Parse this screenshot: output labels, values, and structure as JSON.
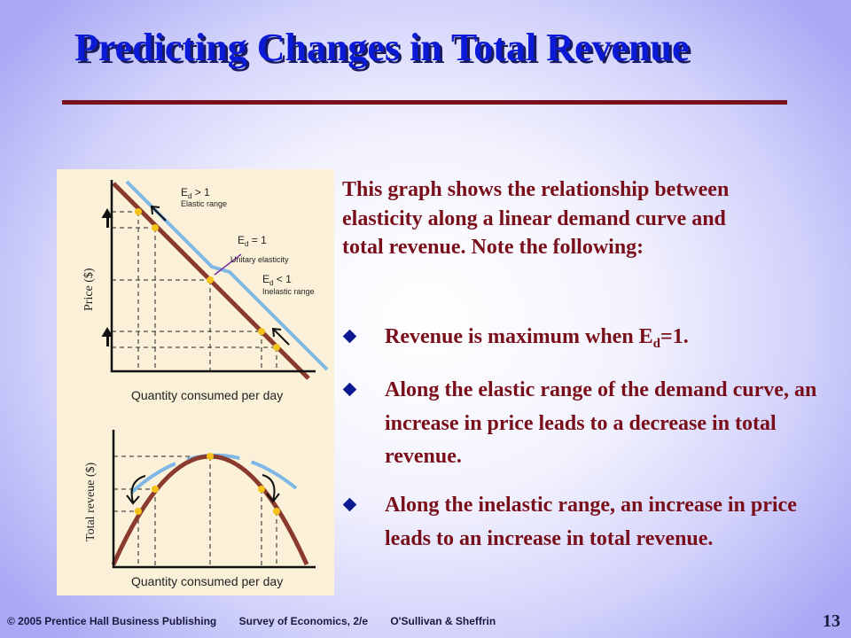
{
  "slide": {
    "title": "Predicting Changes in Total Revenue",
    "intro": "This graph shows the relationship between elasticity along a linear demand curve and total revenue. Note the following:",
    "bullets": [
      {
        "before": "Revenue is maximum when E",
        "sub": "d",
        "after": "=1."
      },
      {
        "text": "Along the elastic range of the demand curve, an increase in price leads to a decrease in total revenue."
      },
      {
        "text": "Along the inelastic range, an increase in price leads to an increase in total revenue."
      }
    ]
  },
  "figure": {
    "top_graph": {
      "ylabel": "Price ($)",
      "xlabel": "Quantity consumed per day",
      "elastic_label": "E",
      "elastic_sub": "d",
      "elastic_rel": " > 1",
      "elastic_range": "Elastic range",
      "unitary_label": "E",
      "unitary_sub": "d",
      "unitary_rel": " = 1",
      "unitary_text": "Unitary elasticity",
      "inelastic_label": "E",
      "inelastic_sub": "d",
      "inelastic_rel": " < 1",
      "inelastic_range": "Inelastic range"
    },
    "bottom_graph": {
      "ylabel": "Total reveue ($)",
      "xlabel": "Quantity consumed per day"
    },
    "colors": {
      "panel": "#faf1d8",
      "curve": "#8b3a2e",
      "highlight": "#7fb8e6",
      "point": "#f5c21a",
      "axis": "#111111"
    }
  },
  "footer": {
    "copyright": "© 2005 Prentice Hall Business Publishing",
    "book": "Survey of Economics, 2/e",
    "authors": "O'Sullivan & Sheffrin",
    "page_number": "13"
  }
}
